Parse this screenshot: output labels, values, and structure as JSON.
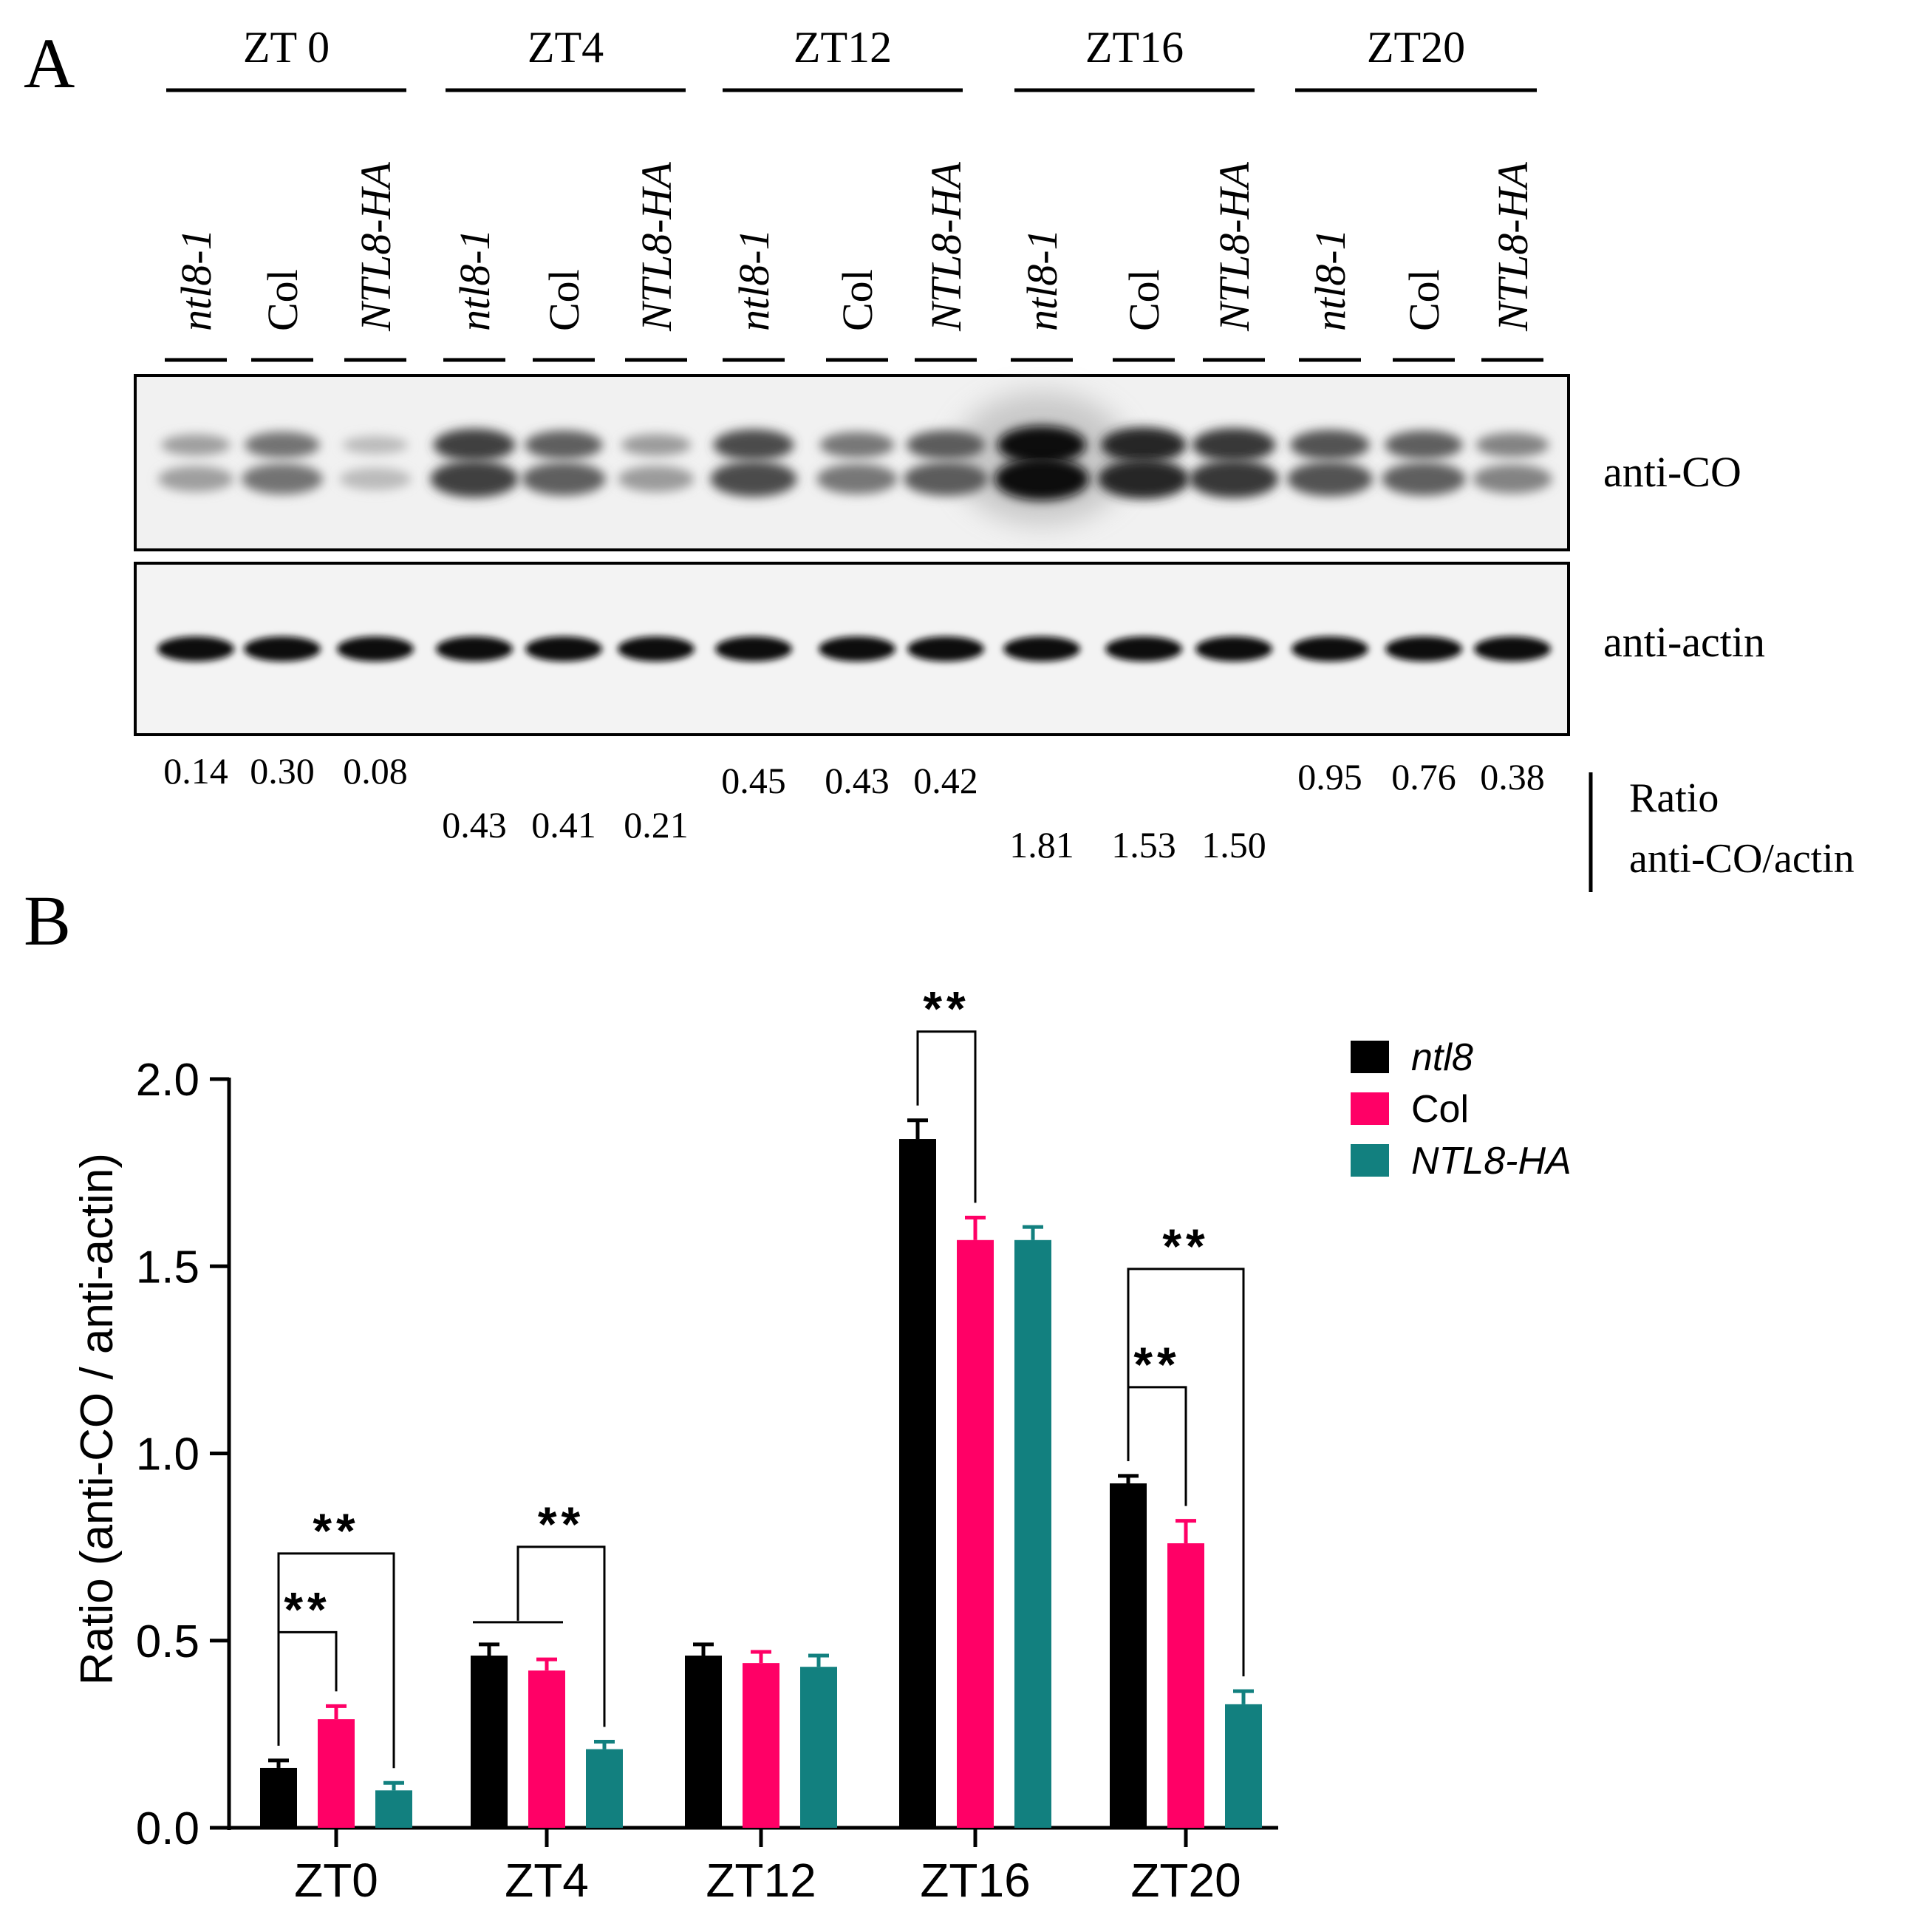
{
  "panel_a": {
    "label": "A",
    "timepoints": [
      "ZT 0",
      "ZT4",
      "ZT12",
      "ZT16",
      "ZT20"
    ],
    "lanes": [
      "ntl8-1",
      "Col",
      "NTL8-HA"
    ],
    "blot_labels": [
      "anti-CO",
      "anti-actin"
    ],
    "ratios": [
      [
        "0.14",
        "0.30",
        "0.08"
      ],
      [
        "0.43",
        "0.41",
        "0.21"
      ],
      [
        "0.45",
        "0.43",
        "0.42"
      ],
      [
        "1.81",
        "1.53",
        "1.50"
      ],
      [
        "0.95",
        "0.76",
        "0.38"
      ]
    ],
    "ratio_label": [
      "Ratio",
      "anti-CO/actin"
    ],
    "co_intensity": [
      [
        0.28,
        0.5,
        0.14
      ],
      [
        0.75,
        0.6,
        0.3
      ],
      [
        0.7,
        0.48,
        0.62
      ],
      [
        1.0,
        0.88,
        0.8
      ],
      [
        0.66,
        0.6,
        0.42
      ]
    ]
  },
  "chart_data": {
    "type": "bar",
    "panel_label": "B",
    "categories": [
      "ZT0",
      "ZT4",
      "ZT12",
      "ZT16",
      "ZT20"
    ],
    "series": [
      {
        "name": "ntl8",
        "color": "#000000",
        "values": [
          0.16,
          0.46,
          0.46,
          1.84,
          0.92
        ],
        "errors": [
          0.02,
          0.03,
          0.03,
          0.05,
          0.02
        ]
      },
      {
        "name": "Col",
        "color": "#ff0066",
        "values": [
          0.29,
          0.42,
          0.44,
          1.57,
          0.76
        ],
        "errors": [
          0.035,
          0.03,
          0.03,
          0.06,
          0.06
        ]
      },
      {
        "name": "NTL8-HA",
        "color": "#12807f",
        "values": [
          0.1,
          0.21,
          0.43,
          1.57,
          0.33
        ],
        "errors": [
          0.02,
          0.02,
          0.03,
          0.035,
          0.035
        ]
      }
    ],
    "ylabel": "Ratio (anti-CO / anti-actin)",
    "ylim": [
      0,
      2.0
    ],
    "yticks": [
      "0.0",
      "0.5",
      "1.0",
      "1.5",
      "2.0"
    ],
    "legend_position": "top-right",
    "significance": [
      {
        "category": "ZT0",
        "from": "ntl8",
        "to": "Col",
        "label": "**"
      },
      {
        "category": "ZT0",
        "from": "ntl8",
        "to": "NTL8-HA",
        "label": "**"
      },
      {
        "category": "ZT4",
        "from": "ntl8+Col",
        "to": "NTL8-HA",
        "label": "**"
      },
      {
        "category": "ZT16",
        "from": "ntl8",
        "to": "Col",
        "label": "**"
      },
      {
        "category": "ZT20",
        "from": "ntl8",
        "to": "Col",
        "label": "**"
      },
      {
        "category": "ZT20",
        "from": "ntl8",
        "to": "NTL8-HA",
        "label": "**"
      }
    ]
  }
}
